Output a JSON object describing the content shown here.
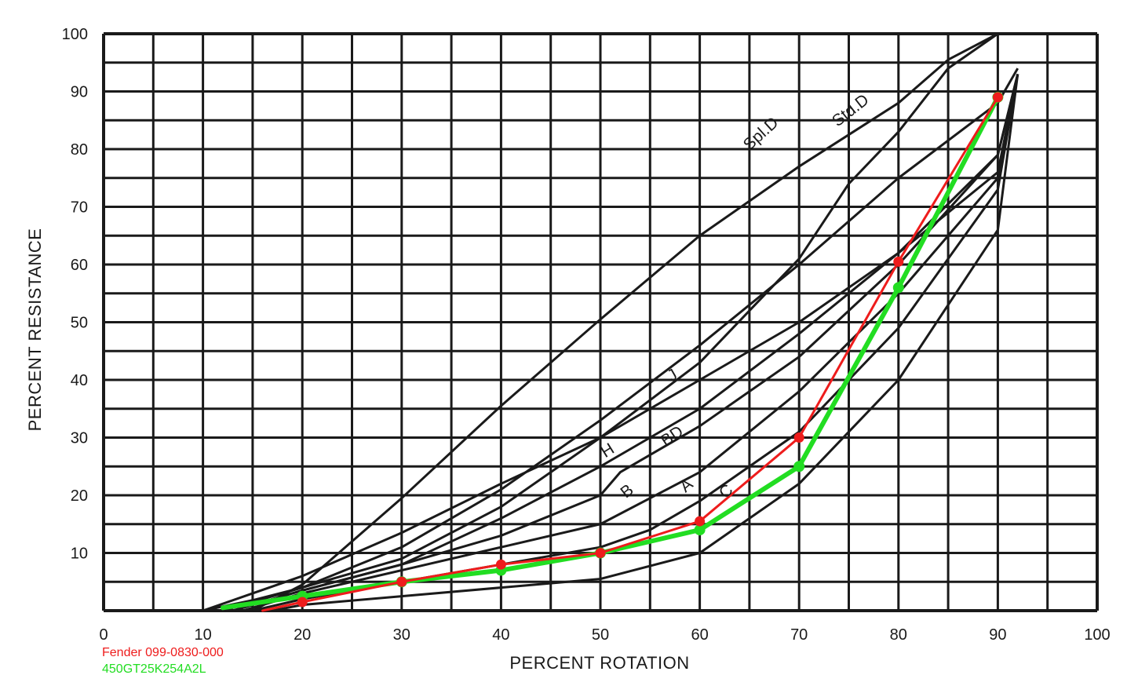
{
  "chart_data": {
    "type": "line",
    "xlabel": "PERCENT ROTATION",
    "ylabel": "PERCENT RESISTANCE",
    "xlim": [
      0,
      100
    ],
    "ylim": [
      0,
      100
    ],
    "x_ticks": [
      "0",
      "10",
      "20",
      "30",
      "40",
      "50",
      "60",
      "70",
      "80",
      "90",
      "100"
    ],
    "y_ticks": [
      "10",
      "20",
      "30",
      "40",
      "50",
      "60",
      "70",
      "80",
      "90",
      "100"
    ],
    "grid": "on",
    "legend": {
      "placement": "bottom-left",
      "entries": [
        {
          "name": "Fender 099-0830-000",
          "color": "#ee1c1c"
        },
        {
          "name": "450GT25K254A2L",
          "color": "#22dd22"
        }
      ]
    },
    "reference_curves": [
      {
        "label": "Spl.D",
        "x": [
          10,
          15,
          20,
          30,
          40,
          50,
          60,
          70,
          75,
          80,
          85,
          90
        ],
        "y": [
          0,
          3,
          6,
          13.5,
          22,
          30,
          43,
          61,
          74,
          83,
          94,
          100
        ]
      },
      {
        "label": "Std.D",
        "x": [
          15,
          20,
          30,
          40,
          50,
          60,
          70,
          80,
          85,
          90,
          95,
          97
        ],
        "y": [
          0,
          4.5,
          19.5,
          35.5,
          50.5,
          65,
          77,
          88,
          95.5,
          100,
          100,
          100
        ]
      },
      {
        "label": "",
        "x": [
          10,
          15,
          20,
          30,
          40,
          50,
          60,
          70,
          80,
          90,
          92
        ],
        "y": [
          0,
          1.8,
          4,
          11,
          21,
          33,
          46,
          60,
          75,
          88,
          94
        ]
      },
      {
        "label": "J",
        "x": [
          12,
          20,
          30,
          40,
          50,
          60,
          70,
          80,
          90,
          92
        ],
        "y": [
          0,
          4,
          9,
          18,
          30,
          40,
          50,
          62,
          76,
          93
        ]
      },
      {
        "label": "H",
        "x": [
          13,
          20,
          30,
          40,
          50,
          60,
          70,
          80,
          90,
          92
        ],
        "y": [
          0,
          3.5,
          8,
          16,
          25,
          35,
          48,
          62,
          79,
          93
        ]
      },
      {
        "label": "BD",
        "x": [
          13,
          20,
          30,
          40,
          50,
          52,
          60,
          70,
          80,
          90,
          92
        ],
        "y": [
          0,
          3.5,
          8,
          13,
          20,
          24,
          32,
          44,
          60,
          79,
          93
        ]
      },
      {
        "label": "B",
        "x": [
          14,
          20,
          30,
          40,
          50,
          60,
          70,
          80,
          90,
          92
        ],
        "y": [
          0,
          3,
          7,
          11,
          15,
          24,
          38,
          55,
          75,
          93
        ]
      },
      {
        "label": "A",
        "x": [
          15,
          20,
          30,
          40,
          50,
          55,
          60,
          70,
          80,
          90,
          92
        ],
        "y": [
          0,
          2,
          5,
          8,
          11,
          14,
          19,
          31,
          49,
          73,
          93
        ]
      },
      {
        "label": "C",
        "x": [
          17,
          20,
          30,
          40,
          50,
          60,
          70,
          80,
          90,
          92
        ],
        "y": [
          0,
          1,
          2.5,
          4,
          5.5,
          10,
          22,
          40,
          66,
          93
        ]
      }
    ],
    "series": [
      {
        "name": "Fender 099-0830-000",
        "color": "#ee1c1c",
        "x": [
          16,
          20,
          30,
          40,
          50,
          60,
          70,
          80,
          90
        ],
        "y": [
          0,
          1.5,
          5,
          8,
          10,
          15.5,
          30,
          60.5,
          89
        ]
      },
      {
        "name": "450GT25K254A2L",
        "color": "#22dd22",
        "x": [
          12,
          20,
          30,
          40,
          50,
          60,
          70,
          80,
          90
        ],
        "y": [
          0.5,
          2.5,
          5,
          7,
          10,
          14,
          25,
          56,
          89
        ]
      }
    ]
  }
}
